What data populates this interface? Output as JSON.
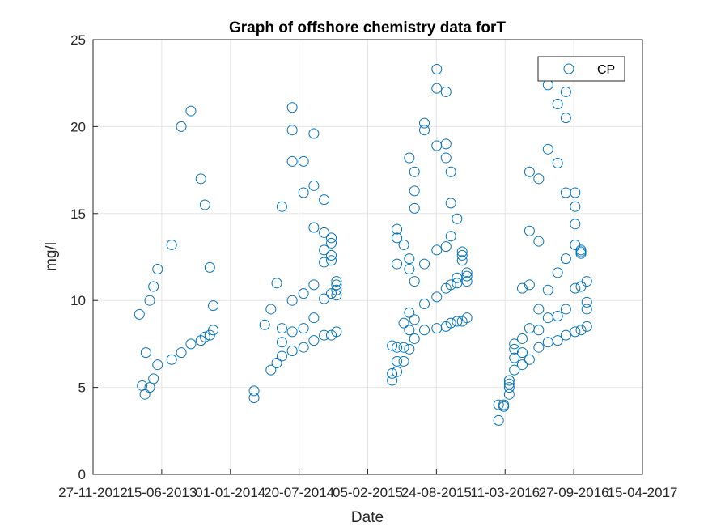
{
  "chart_data": {
    "type": "scatter",
    "title": "Graph of offshore chemistry data forT",
    "xlabel": "Date",
    "ylabel": "mg/l",
    "xlim": [
      "27-11-2012",
      "15-04-2017"
    ],
    "ylim": [
      0,
      25
    ],
    "xticks": [
      "27-11-2012",
      "15-06-2013",
      "01-01-2014",
      "20-07-2014",
      "05-02-2015",
      "24-08-2015",
      "11-03-2016",
      "27-09-2016",
      "15-04-2017"
    ],
    "yticks": [
      0,
      5,
      10,
      15,
      20,
      25
    ],
    "grid": true,
    "legend_position": "top-right",
    "marker": "open-circle",
    "colors": {
      "series": "#0072BD",
      "axis": "#262626",
      "grid": "#e5e5e5"
    },
    "series": [
      {
        "name": "CP",
        "points": [
          [
            "11-04-2013",
            9.2
          ],
          [
            "19-04-2013",
            5.1
          ],
          [
            "27-04-2013",
            4.6
          ],
          [
            "30-04-2013",
            7.0
          ],
          [
            "11-05-2013",
            10.0
          ],
          [
            "11-05-2013",
            5.0
          ],
          [
            "22-05-2013",
            10.8
          ],
          [
            "22-05-2013",
            5.5
          ],
          [
            "03-06-2013",
            11.8
          ],
          [
            "03-06-2013",
            6.3
          ],
          [
            "14-07-2013",
            13.2
          ],
          [
            "14-07-2013",
            6.6
          ],
          [
            "11-08-2013",
            20.0
          ],
          [
            "11-08-2013",
            7.0
          ],
          [
            "08-09-2013",
            20.9
          ],
          [
            "08-09-2013",
            7.5
          ],
          [
            "07-10-2013",
            17.0
          ],
          [
            "07-10-2013",
            7.7
          ],
          [
            "19-10-2013",
            15.5
          ],
          [
            "19-10-2013",
            7.9
          ],
          [
            "02-11-2013",
            11.9
          ],
          [
            "02-11-2013",
            8.0
          ],
          [
            "12-11-2013",
            9.7
          ],
          [
            "12-11-2013",
            8.3
          ],
          [
            "11-03-2014",
            4.8
          ],
          [
            "11-03-2014",
            4.4
          ],
          [
            "11-04-2014",
            8.6
          ],
          [
            "29-04-2014",
            9.5
          ],
          [
            "29-04-2014",
            6.0
          ],
          [
            "16-05-2014",
            11.0
          ],
          [
            "16-05-2014",
            6.4
          ],
          [
            "31-05-2014",
            15.4
          ],
          [
            "31-05-2014",
            8.4
          ],
          [
            "31-05-2014",
            7.6
          ],
          [
            "31-05-2014",
            6.8
          ],
          [
            "30-06-2014",
            10.0
          ],
          [
            "30-06-2014",
            8.2
          ],
          [
            "30-06-2014",
            7.1
          ],
          [
            "30-06-2014",
            21.1
          ],
          [
            "30-06-2014",
            19.8
          ],
          [
            "30-06-2014",
            18.0
          ],
          [
            "02-08-2014",
            18.0
          ],
          [
            "02-08-2014",
            16.2
          ],
          [
            "02-08-2014",
            10.4
          ],
          [
            "02-08-2014",
            8.4
          ],
          [
            "02-08-2014",
            7.3
          ],
          [
            "01-09-2014",
            19.6
          ],
          [
            "01-09-2014",
            16.6
          ],
          [
            "01-09-2014",
            14.2
          ],
          [
            "01-09-2014",
            10.9
          ],
          [
            "01-09-2014",
            9.0
          ],
          [
            "01-09-2014",
            7.7
          ],
          [
            "01-10-2014",
            15.8
          ],
          [
            "01-10-2014",
            13.9
          ],
          [
            "01-10-2014",
            12.9
          ],
          [
            "01-10-2014",
            12.2
          ],
          [
            "01-10-2014",
            10.1
          ],
          [
            "01-10-2014",
            8.0
          ],
          [
            "22-10-2014",
            13.6
          ],
          [
            "22-10-2014",
            13.3
          ],
          [
            "22-10-2014",
            12.6
          ],
          [
            "22-10-2014",
            12.3
          ],
          [
            "22-10-2014",
            10.4
          ],
          [
            "22-10-2014",
            8.0
          ],
          [
            "06-11-2014",
            11.1
          ],
          [
            "06-11-2014",
            10.9
          ],
          [
            "06-11-2014",
            10.6
          ],
          [
            "06-11-2014",
            10.3
          ],
          [
            "06-11-2014",
            8.2
          ],
          [
            "17-04-2015",
            7.4
          ],
          [
            "17-04-2015",
            5.8
          ],
          [
            "17-04-2015",
            5.4
          ],
          [
            "01-05-2015",
            14.1
          ],
          [
            "01-05-2015",
            13.6
          ],
          [
            "01-05-2015",
            12.1
          ],
          [
            "01-05-2015",
            7.3
          ],
          [
            "01-05-2015",
            6.5
          ],
          [
            "01-05-2015",
            5.9
          ],
          [
            "21-05-2015",
            13.2
          ],
          [
            "21-05-2015",
            8.7
          ],
          [
            "21-05-2015",
            7.3
          ],
          [
            "21-05-2015",
            6.5
          ],
          [
            "06-06-2015",
            18.2
          ],
          [
            "06-06-2015",
            12.4
          ],
          [
            "06-06-2015",
            11.8
          ],
          [
            "06-06-2015",
            9.3
          ],
          [
            "06-06-2015",
            8.3
          ],
          [
            "06-06-2015",
            7.2
          ],
          [
            "21-06-2015",
            17.4
          ],
          [
            "21-06-2015",
            16.3
          ],
          [
            "21-06-2015",
            15.3
          ],
          [
            "21-06-2015",
            11.1
          ],
          [
            "21-06-2015",
            8.9
          ],
          [
            "21-06-2015",
            7.8
          ],
          [
            "20-07-2015",
            20.2
          ],
          [
            "20-07-2015",
            19.8
          ],
          [
            "20-07-2015",
            12.1
          ],
          [
            "20-07-2015",
            9.8
          ],
          [
            "20-07-2015",
            8.3
          ],
          [
            "25-08-2015",
            23.3
          ],
          [
            "25-08-2015",
            22.2
          ],
          [
            "25-08-2015",
            18.9
          ],
          [
            "25-08-2015",
            12.9
          ],
          [
            "25-08-2015",
            10.2
          ],
          [
            "25-08-2015",
            8.4
          ],
          [
            "21-09-2015",
            22.0
          ],
          [
            "21-09-2015",
            19.0
          ],
          [
            "21-09-2015",
            18.2
          ],
          [
            "21-09-2015",
            13.1
          ],
          [
            "21-09-2015",
            10.7
          ],
          [
            "21-09-2015",
            8.5
          ],
          [
            "05-10-2015",
            17.4
          ],
          [
            "05-10-2015",
            15.6
          ],
          [
            "05-10-2015",
            13.7
          ],
          [
            "05-10-2015",
            10.9
          ],
          [
            "05-10-2015",
            8.7
          ],
          [
            "23-10-2015",
            14.7
          ],
          [
            "23-10-2015",
            11.3
          ],
          [
            "23-10-2015",
            11.0
          ],
          [
            "23-10-2015",
            8.8
          ],
          [
            "07-11-2015",
            12.8
          ],
          [
            "07-11-2015",
            12.6
          ],
          [
            "07-11-2015",
            12.3
          ],
          [
            "07-11-2015",
            8.8
          ],
          [
            "21-11-2015",
            11.6
          ],
          [
            "21-11-2015",
            11.4
          ],
          [
            "21-11-2015",
            11.1
          ],
          [
            "21-11-2015",
            9.0
          ],
          [
            "21-02-2016",
            4.0
          ],
          [
            "21-02-2016",
            3.1
          ],
          [
            "07-03-2016",
            4.0
          ],
          [
            "07-03-2016",
            3.9
          ],
          [
            "23-03-2016",
            5.4
          ],
          [
            "23-03-2016",
            5.2
          ],
          [
            "23-03-2016",
            5.0
          ],
          [
            "23-03-2016",
            4.6
          ],
          [
            "07-04-2016",
            7.5
          ],
          [
            "07-04-2016",
            7.2
          ],
          [
            "07-04-2016",
            6.7
          ],
          [
            "07-04-2016",
            6.0
          ],
          [
            "30-04-2016",
            10.7
          ],
          [
            "30-04-2016",
            7.8
          ],
          [
            "30-04-2016",
            7.0
          ],
          [
            "30-04-2016",
            6.3
          ],
          [
            "21-05-2016",
            17.4
          ],
          [
            "21-05-2016",
            14.0
          ],
          [
            "21-05-2016",
            10.9
          ],
          [
            "21-05-2016",
            8.4
          ],
          [
            "21-05-2016",
            6.6
          ],
          [
            "17-06-2016",
            17.0
          ],
          [
            "17-06-2016",
            13.4
          ],
          [
            "17-06-2016",
            9.5
          ],
          [
            "17-06-2016",
            8.3
          ],
          [
            "17-06-2016",
            7.3
          ],
          [
            "14-07-2016",
            22.4
          ],
          [
            "14-07-2016",
            18.7
          ],
          [
            "14-07-2016",
            10.6
          ],
          [
            "14-07-2016",
            9.0
          ],
          [
            "14-07-2016",
            7.6
          ],
          [
            "11-08-2016",
            21.3
          ],
          [
            "11-08-2016",
            17.9
          ],
          [
            "11-08-2016",
            11.6
          ],
          [
            "11-08-2016",
            9.1
          ],
          [
            "11-08-2016",
            7.7
          ],
          [
            "04-09-2016",
            22.0
          ],
          [
            "04-09-2016",
            20.5
          ],
          [
            "04-09-2016",
            16.2
          ],
          [
            "04-09-2016",
            12.4
          ],
          [
            "04-09-2016",
            9.5
          ],
          [
            "04-09-2016",
            8.0
          ],
          [
            "01-10-2016",
            16.2
          ],
          [
            "01-10-2016",
            15.4
          ],
          [
            "01-10-2016",
            14.4
          ],
          [
            "01-10-2016",
            13.2
          ],
          [
            "01-10-2016",
            10.7
          ],
          [
            "01-10-2016",
            8.2
          ],
          [
            "18-10-2016",
            12.9
          ],
          [
            "18-10-2016",
            12.8
          ],
          [
            "18-10-2016",
            12.7
          ],
          [
            "18-10-2016",
            10.8
          ],
          [
            "18-10-2016",
            8.3
          ],
          [
            "04-11-2016",
            11.1
          ],
          [
            "04-11-2016",
            9.9
          ],
          [
            "04-11-2016",
            9.5
          ],
          [
            "04-11-2016",
            8.5
          ]
        ]
      }
    ]
  }
}
